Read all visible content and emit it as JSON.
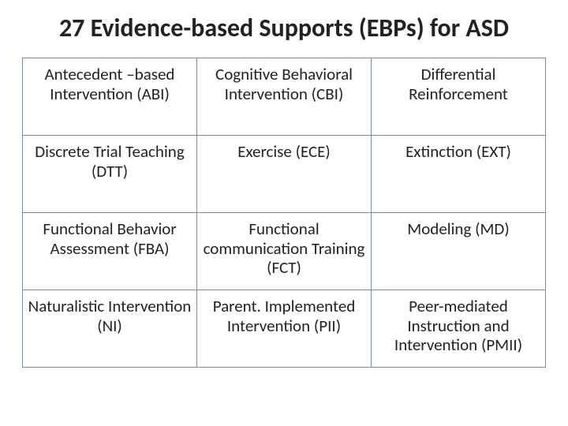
{
  "title": "27 Evidence-based Supports (EBPs) for ASD",
  "table": {
    "columns": 3,
    "rows": [
      [
        "Antecedent –based Intervention (ABI)",
        "Cognitive Behavioral Intervention (CBI)",
        "Differential Reinforcement"
      ],
      [
        "Discrete Trial Teaching (DTT)",
        "Exercise (ECE)",
        "Extinction (EXT)"
      ],
      [
        "Functional Behavior Assessment (FBA)",
        "Functional communication Training (FCT)",
        "Modeling (MD)"
      ],
      [
        "Naturalistic Intervention (NI)",
        "Parent. Implemented Intervention (PII)",
        "Peer-mediated Instruction and Intervention (PMII)"
      ]
    ],
    "border_color": "#6a8fb5",
    "text_color": "#222222",
    "cell_fontsize": 21,
    "title_fontsize": 32,
    "title_weight": 700,
    "background_color": "#ffffff"
  }
}
